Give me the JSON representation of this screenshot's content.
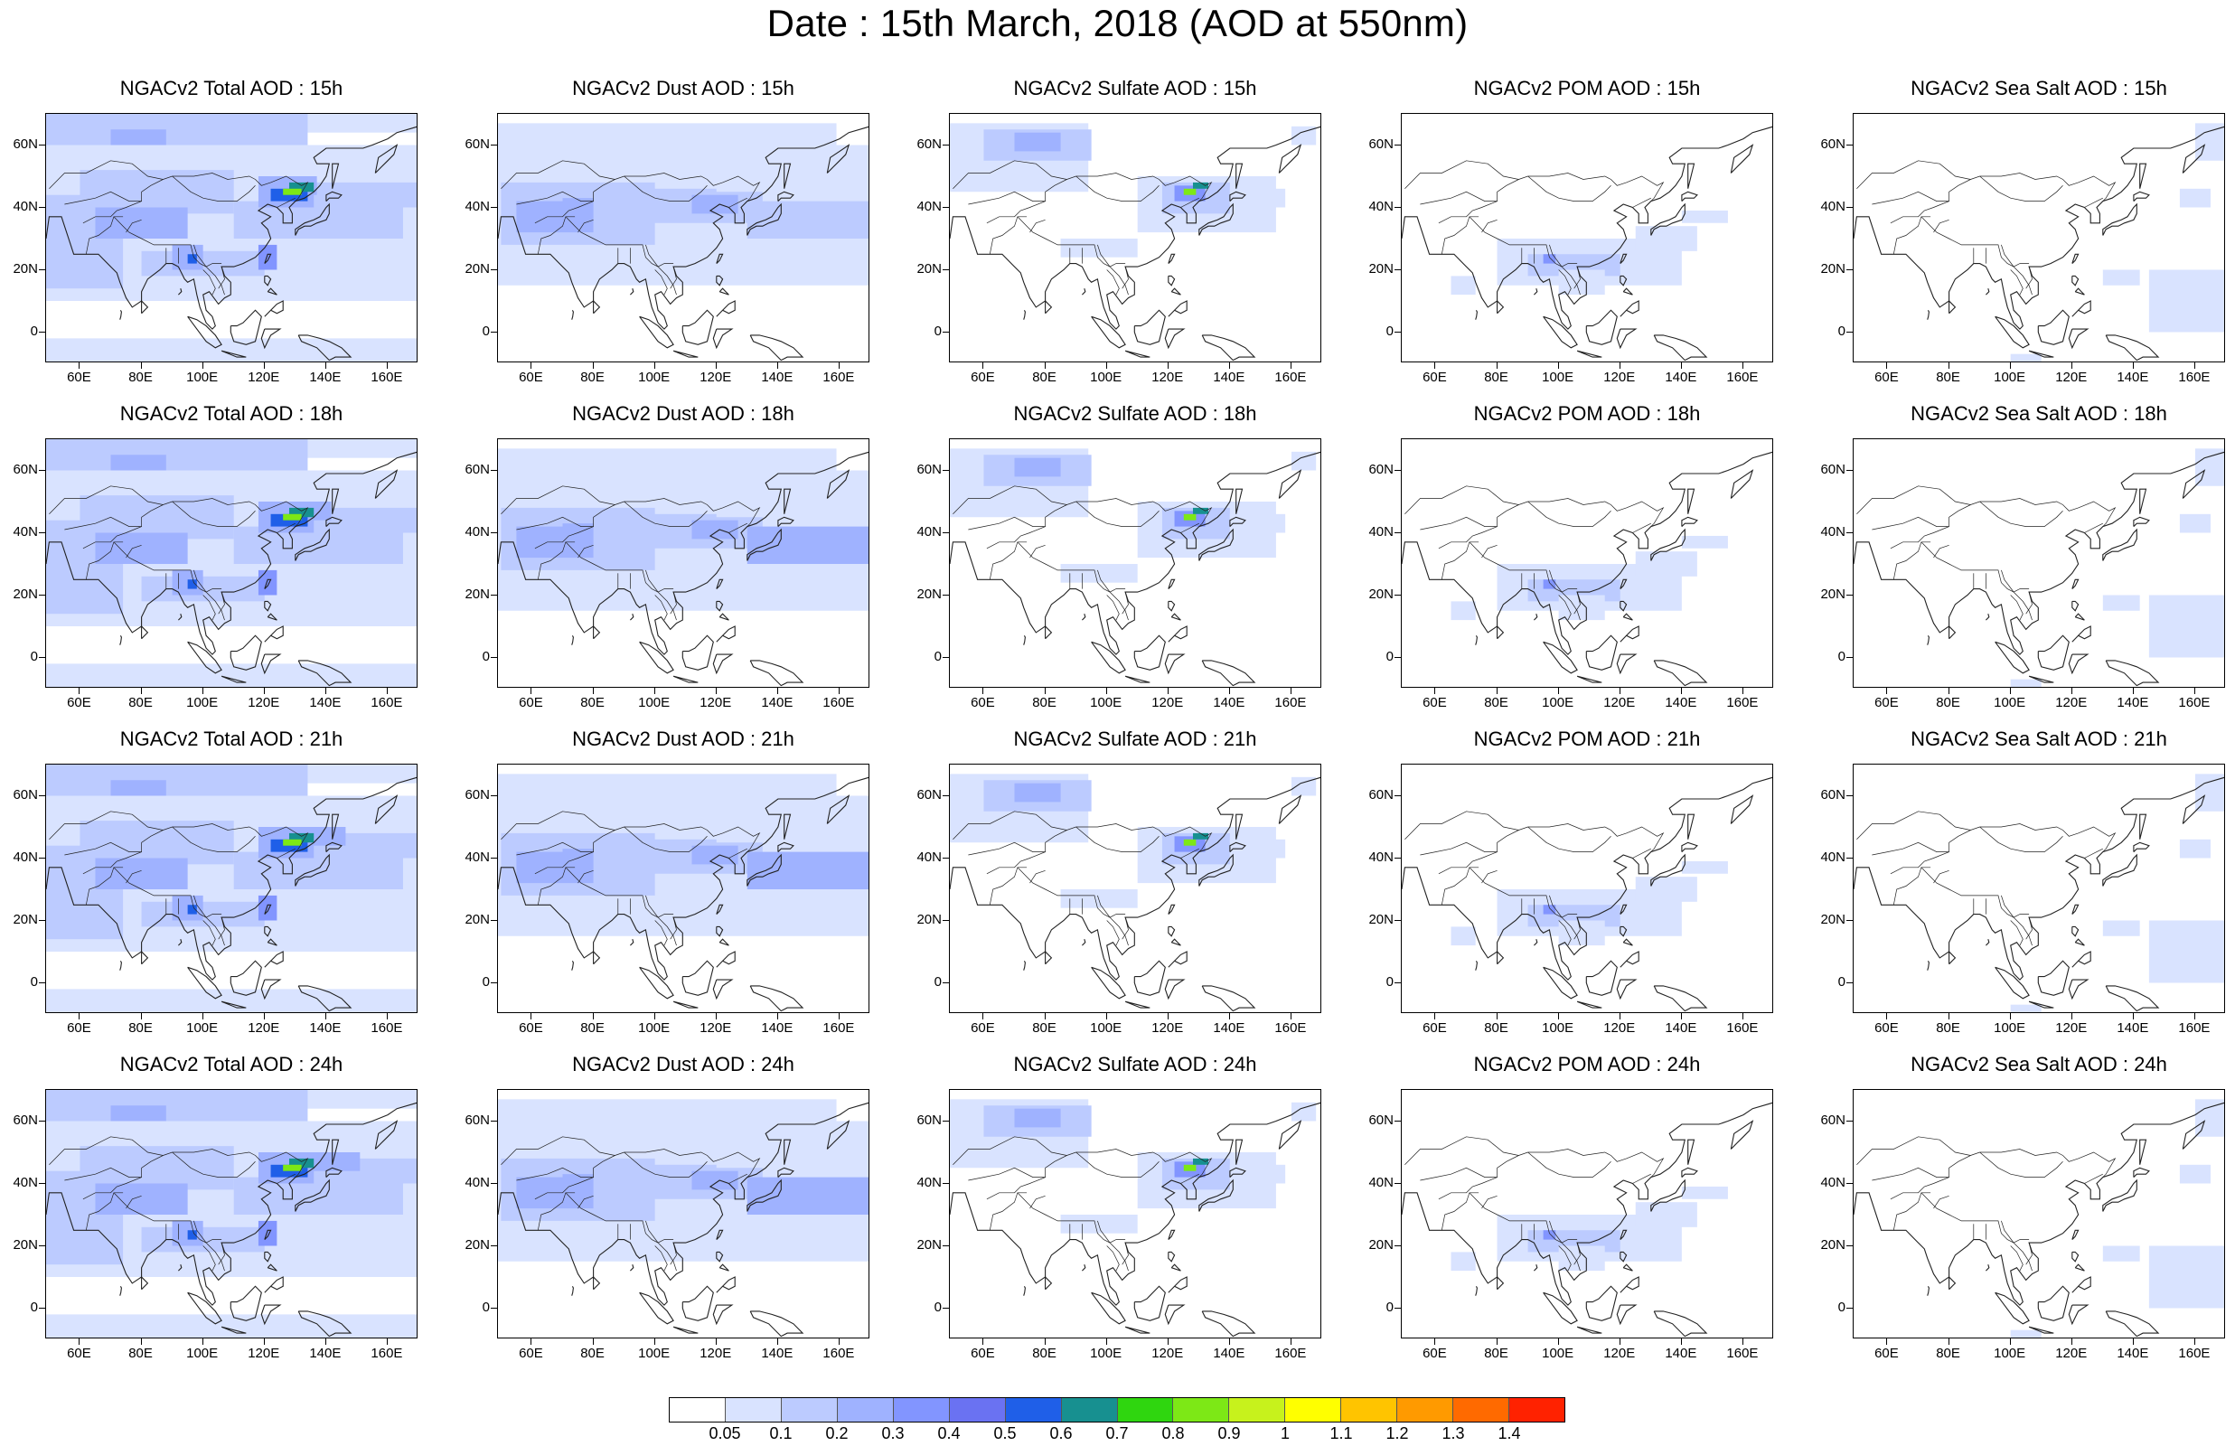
{
  "figure": {
    "title": "Date : 15th March, 2018 (AOD at 550nm)"
  },
  "axes": {
    "x_ticks": [
      "60E",
      "80E",
      "100E",
      "120E",
      "140E",
      "160E"
    ],
    "x_values": [
      60,
      80,
      100,
      120,
      140,
      160
    ],
    "y_ticks": [
      "60N",
      "40N",
      "20N",
      "0"
    ],
    "y_values": [
      60,
      40,
      20,
      0
    ],
    "lon_range": [
      49,
      170
    ],
    "lat_range": [
      -10,
      70
    ]
  },
  "panels": [
    {
      "title": "NGACv2 Total AOD : 15h",
      "species": "total",
      "hour": 15
    },
    {
      "title": "NGACv2 Dust AOD : 15h",
      "species": "dust",
      "hour": 15
    },
    {
      "title": "NGACv2 Sulfate AOD : 15h",
      "species": "sulfate",
      "hour": 15
    },
    {
      "title": "NGACv2 POM AOD : 15h",
      "species": "pom",
      "hour": 15
    },
    {
      "title": "NGACv2 Sea Salt AOD : 15h",
      "species": "seasalt",
      "hour": 15
    },
    {
      "title": "NGACv2 Total AOD : 18h",
      "species": "total",
      "hour": 18
    },
    {
      "title": "NGACv2 Dust AOD : 18h",
      "species": "dust",
      "hour": 18
    },
    {
      "title": "NGACv2 Sulfate AOD : 18h",
      "species": "sulfate",
      "hour": 18
    },
    {
      "title": "NGACv2 POM AOD : 18h",
      "species": "pom",
      "hour": 18
    },
    {
      "title": "NGACv2 Sea Salt AOD : 18h",
      "species": "seasalt",
      "hour": 18
    },
    {
      "title": "NGACv2 Total AOD : 21h",
      "species": "total",
      "hour": 21
    },
    {
      "title": "NGACv2 Dust AOD : 21h",
      "species": "dust",
      "hour": 21
    },
    {
      "title": "NGACv2 Sulfate AOD : 21h",
      "species": "sulfate",
      "hour": 21
    },
    {
      "title": "NGACv2 POM AOD : 21h",
      "species": "pom",
      "hour": 21
    },
    {
      "title": "NGACv2 Sea Salt AOD : 21h",
      "species": "seasalt",
      "hour": 21
    },
    {
      "title": "NGACv2 Total AOD : 24h",
      "species": "total",
      "hour": 24
    },
    {
      "title": "NGACv2 Dust AOD : 24h",
      "species": "dust",
      "hour": 24
    },
    {
      "title": "NGACv2 Sulfate AOD : 24h",
      "species": "sulfate",
      "hour": 24
    },
    {
      "title": "NGACv2 POM AOD : 24h",
      "species": "pom",
      "hour": 24
    },
    {
      "title": "NGACv2 Sea Salt  AOD : 24h",
      "species": "seasalt",
      "hour": 24
    }
  ],
  "colorbar": {
    "labels": [
      "0.05",
      "0.1",
      "0.2",
      "0.3",
      "0.4",
      "0.5",
      "0.6",
      "0.7",
      "0.8",
      "0.9",
      "1",
      "1.1",
      "1.2",
      "1.3",
      "1.4"
    ],
    "colors": [
      "#ffffff",
      "#d9e3ff",
      "#bccbff",
      "#9fb2ff",
      "#8295ff",
      "#6a72f2",
      "#1f5fe8",
      "#179090",
      "#2fd60f",
      "#7de816",
      "#c7f21c",
      "#ffff00",
      "#ffc400",
      "#ff9a00",
      "#ff6a00",
      "#ff2200"
    ]
  }
}
